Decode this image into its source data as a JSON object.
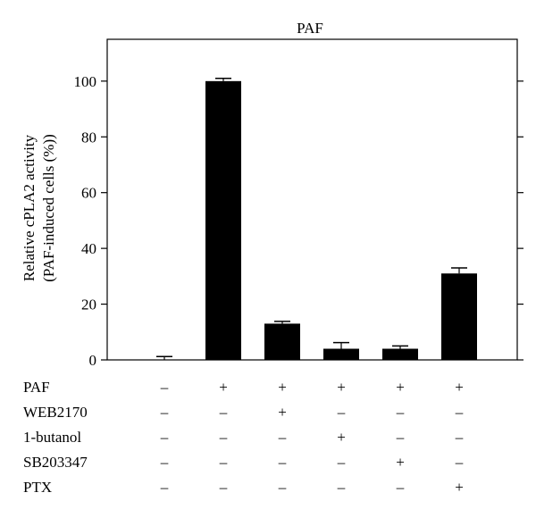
{
  "chart_data": {
    "type": "bar",
    "title": "PAF",
    "ylabel_line1": "Relative cPLA2 activity",
    "ylabel_line2": "(PAF-induced cells (%))",
    "ylim": [
      0,
      115
    ],
    "yticks": [
      0,
      20,
      40,
      60,
      80,
      100
    ],
    "ytick_labels": [
      "0",
      "20",
      "40",
      "60",
      "80",
      "100"
    ],
    "values": [
      0,
      100,
      13,
      4,
      4,
      31
    ],
    "errors": [
      1.2,
      1.0,
      0.8,
      2.2,
      1.0,
      2.0
    ],
    "bar_color": "#000000",
    "grid": false,
    "treatments": [
      {
        "name": "PAF",
        "signs": [
          "–",
          "+",
          "+",
          "+",
          "+",
          "+"
        ]
      },
      {
        "name": "WEB2170",
        "signs": [
          "–",
          "–",
          "+",
          "–",
          "–",
          "–"
        ]
      },
      {
        "name": "1-butanol",
        "signs": [
          "–",
          "–",
          "–",
          "+",
          "–",
          "–"
        ]
      },
      {
        "name": "SB203347",
        "signs": [
          "–",
          "–",
          "–",
          "–",
          "+",
          "–"
        ]
      },
      {
        "name": "PTX",
        "signs": [
          "–",
          "–",
          "–",
          "–",
          "–",
          "+"
        ]
      }
    ]
  }
}
